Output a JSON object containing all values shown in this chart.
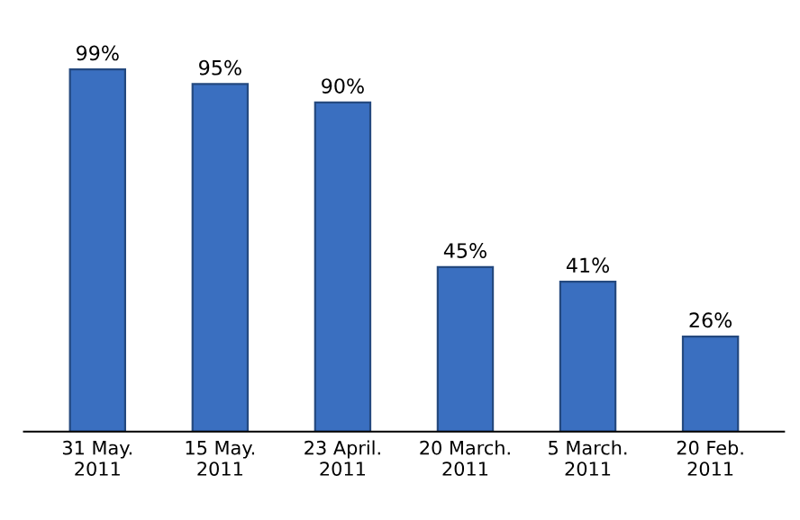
{
  "chart_data": {
    "type": "bar",
    "categories": [
      "31 May.\n2011",
      "15 May.\n2011",
      "23 April.\n2011",
      "20 March.\n2011",
      "5 March.\n2011",
      "20 Feb.\n2011"
    ],
    "values": [
      99,
      95,
      90,
      45,
      41,
      26
    ],
    "value_labels": [
      "99%",
      "95%",
      "90%",
      "45%",
      "41%",
      "26%"
    ],
    "color": "#3a6fc0",
    "grid": false,
    "legend": false
  }
}
